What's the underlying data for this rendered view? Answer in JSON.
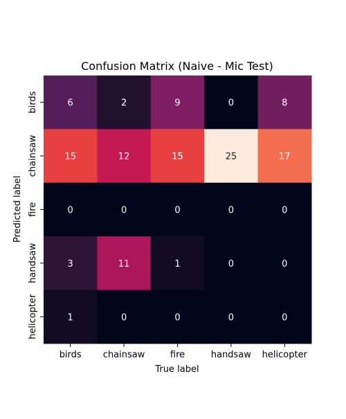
{
  "chart_data": {
    "type": "heatmap",
    "title": "Confusion Matrix (Naive - Mic Test)",
    "xlabel": "True label",
    "ylabel": "Predicted label",
    "x_categories": [
      "birds",
      "chainsaw",
      "fire",
      "handsaw",
      "helicopter"
    ],
    "y_categories": [
      "birds",
      "chainsaw",
      "fire",
      "handsaw",
      "helicopter"
    ],
    "values": [
      [
        6,
        2,
        9,
        0,
        8
      ],
      [
        15,
        12,
        15,
        25,
        17
      ],
      [
        0,
        0,
        0,
        0,
        0
      ],
      [
        3,
        11,
        1,
        0,
        0
      ],
      [
        1,
        0,
        0,
        0,
        0
      ]
    ],
    "vmin": 0,
    "vmax": 25,
    "colormap": "rocket",
    "colorbar": false,
    "grid": false
  }
}
